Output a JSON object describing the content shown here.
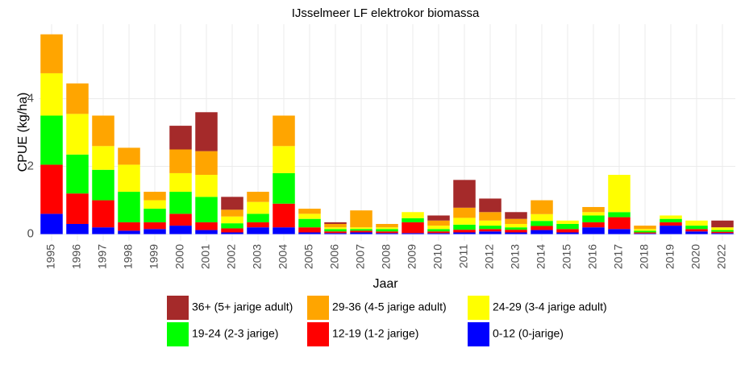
{
  "chart_data": {
    "type": "stacked_bar",
    "title": "IJsselmeer LF elektrokor biomassa",
    "x_label": "Jaar",
    "y_label": "CPUE (kg/ha)",
    "categories": [
      "1995",
      "1996",
      "1997",
      "1998",
      "1999",
      "2000",
      "2001",
      "2002",
      "2003",
      "2004",
      "2005",
      "2006",
      "2007",
      "2008",
      "2009",
      "2010",
      "2011",
      "2012",
      "2013",
      "2014",
      "2015",
      "2016",
      "2017",
      "2018",
      "2019",
      "2020",
      "2022"
    ],
    "series": [
      {
        "name": "0-12 (0-jarige)",
        "color": "#0000ff",
        "values": [
          0.6,
          0.3,
          0.2,
          0.1,
          0.15,
          0.25,
          0.12,
          0.05,
          0.2,
          0.2,
          0.05,
          0.03,
          0.05,
          0.03,
          0.03,
          0.03,
          0.05,
          0.08,
          0.05,
          0.12,
          0.05,
          0.2,
          0.15,
          0.02,
          0.25,
          0.08,
          0.03
        ]
      },
      {
        "name": "12-19 (1-2 jarige)",
        "color": "#ff0000",
        "values": [
          1.45,
          0.9,
          0.8,
          0.25,
          0.2,
          0.35,
          0.23,
          0.12,
          0.15,
          0.7,
          0.15,
          0.05,
          0.05,
          0.05,
          0.32,
          0.05,
          0.08,
          0.07,
          0.08,
          0.12,
          0.1,
          0.15,
          0.35,
          0.03,
          0.1,
          0.07,
          0.04
        ]
      },
      {
        "name": "19-24 (2-3 jarige)",
        "color": "#00ff00",
        "values": [
          1.45,
          1.15,
          0.9,
          0.9,
          0.4,
          0.65,
          0.75,
          0.15,
          0.25,
          0.9,
          0.25,
          0.07,
          0.05,
          0.07,
          0.12,
          0.07,
          0.15,
          0.1,
          0.07,
          0.15,
          0.15,
          0.2,
          0.15,
          0.05,
          0.1,
          0.1,
          0.05
        ]
      },
      {
        "name": "24-29 (3-4 jarige adult)",
        "color": "#ffff00",
        "values": [
          1.25,
          1.2,
          0.7,
          0.8,
          0.25,
          0.55,
          0.65,
          0.2,
          0.35,
          0.8,
          0.15,
          0.05,
          0.05,
          0.05,
          0.18,
          0.1,
          0.2,
          0.15,
          0.1,
          0.2,
          0.1,
          0.1,
          1.1,
          0.05,
          0.1,
          0.15,
          0.08
        ]
      },
      {
        "name": "29-36 (4-5 jarige adult)",
        "color": "#ffa500",
        "values": [
          1.15,
          0.9,
          0.9,
          0.5,
          0.25,
          0.7,
          0.7,
          0.2,
          0.3,
          0.9,
          0.15,
          0.1,
          0.5,
          0.1,
          0,
          0.15,
          0.3,
          0.25,
          0.15,
          0.41,
          0,
          0.15,
          0,
          0.1,
          0,
          0,
          0
        ]
      },
      {
        "name": "36+ (5+ jarige adult)",
        "color": "#a52a2a",
        "values": [
          0,
          0,
          0,
          0,
          0,
          0.7,
          1.15,
          0.38,
          0,
          0,
          0,
          0.05,
          0,
          0,
          0,
          0.15,
          0.82,
          0.4,
          0.2,
          0,
          0,
          0,
          0,
          0,
          0,
          0,
          0.2
        ]
      }
    ],
    "ylim": [
      -0.2,
      6.2
    ],
    "yticks": [
      0,
      2,
      4
    ],
    "grid": true
  }
}
